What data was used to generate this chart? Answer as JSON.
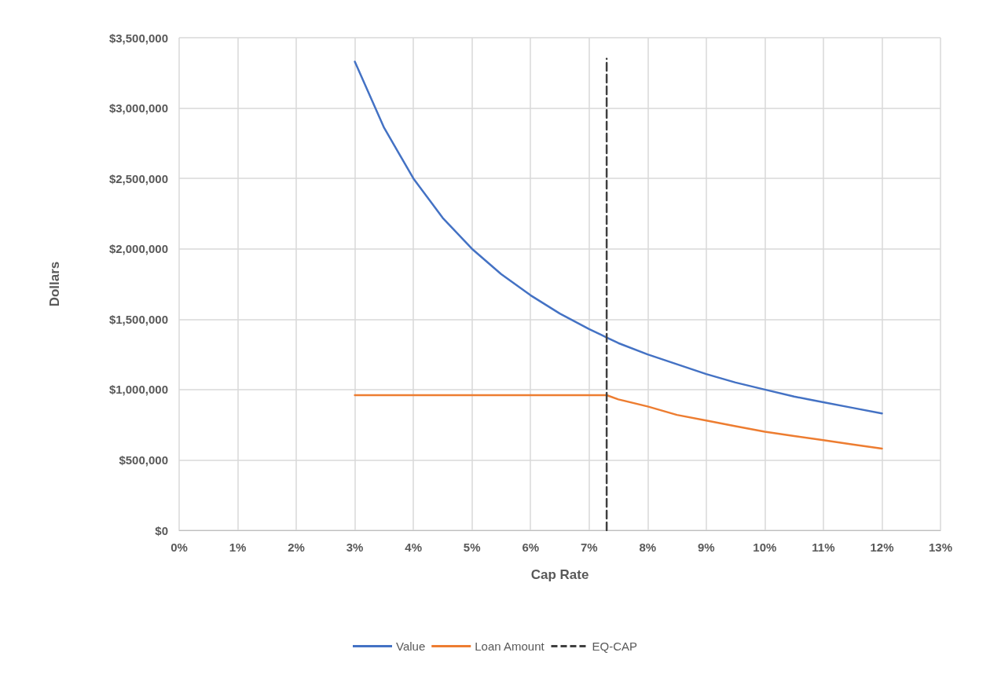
{
  "chart_data": {
    "type": "line",
    "xlabel": "Cap Rate",
    "ylabel": "Dollars",
    "xlim": [
      0,
      13
    ],
    "xticks": [
      {
        "value": 0,
        "label": "0%"
      },
      {
        "value": 1,
        "label": "1%"
      },
      {
        "value": 2,
        "label": "2%"
      },
      {
        "value": 3,
        "label": "3%"
      },
      {
        "value": 4,
        "label": "4%"
      },
      {
        "value": 5,
        "label": "5%"
      },
      {
        "value": 6,
        "label": "6%"
      },
      {
        "value": 7,
        "label": "7%"
      },
      {
        "value": 8,
        "label": "8%"
      },
      {
        "value": 9,
        "label": "9%"
      },
      {
        "value": 10,
        "label": "10%"
      },
      {
        "value": 11,
        "label": "11%"
      },
      {
        "value": 12,
        "label": "12%"
      },
      {
        "value": 13,
        "label": "13%"
      }
    ],
    "ylim": [
      0,
      3500000
    ],
    "yticks": [
      {
        "value": 0,
        "label": "$0"
      },
      {
        "value": 500000,
        "label": "$500,000"
      },
      {
        "value": 1000000,
        "label": "$1,000,000"
      },
      {
        "value": 1500000,
        "label": "$1,500,000"
      },
      {
        "value": 2000000,
        "label": "$2,000,000"
      },
      {
        "value": 2500000,
        "label": "$2,500,000"
      },
      {
        "value": 3000000,
        "label": "$3,000,000"
      },
      {
        "value": 3500000,
        "label": "$3,500,000"
      }
    ],
    "grid": true,
    "legend": "bottom",
    "marker": "none",
    "line_style": "solid",
    "series": [
      {
        "name": "Value",
        "color": "#4472c4",
        "x": [
          3,
          3.5,
          4,
          4.5,
          5,
          5.5,
          6,
          6.5,
          7,
          7.3,
          7.5,
          8,
          8.5,
          9,
          9.5,
          10,
          10.5,
          11,
          11.5,
          12
        ],
        "values": [
          3330000,
          2860000,
          2500000,
          2220000,
          2000000,
          1820000,
          1670000,
          1540000,
          1430000,
          1370000,
          1330000,
          1250000,
          1180000,
          1110000,
          1050000,
          1000000,
          950000,
          910000,
          870000,
          830000
        ]
      },
      {
        "name": "Loan Amount",
        "color": "#ed7d31",
        "x": [
          3,
          7.3,
          7.5,
          8,
          8.5,
          9,
          9.5,
          10,
          10.5,
          11,
          11.5,
          12
        ],
        "values": [
          960000,
          960000,
          930000,
          880000,
          820000,
          780000,
          740000,
          700000,
          670000,
          640000,
          610000,
          580000
        ]
      },
      {
        "name": "EQ-CAP",
        "color": "#404040",
        "line_style": "dashed",
        "x": [
          7.3,
          7.3
        ],
        "values": [
          0,
          3350000
        ]
      }
    ]
  }
}
